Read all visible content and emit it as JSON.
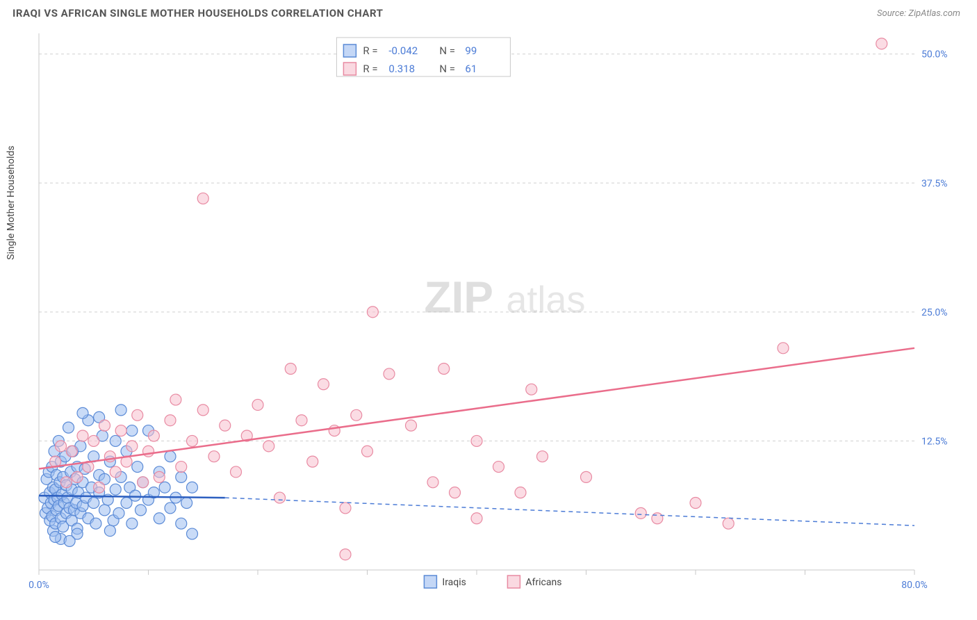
{
  "title": "IRAQI VS AFRICAN SINGLE MOTHER HOUSEHOLDS CORRELATION CHART",
  "source": "Source: ZipAtlas.com",
  "ylabel": "Single Mother Households",
  "watermark_1": "ZIP",
  "watermark_2": "atlas",
  "chart": {
    "type": "scatter",
    "background_color": "#ffffff",
    "grid_color": "#d0d0d0",
    "axis_color": "#c8c8c8",
    "label_color": "#4b7bd6",
    "xlim": [
      0,
      80
    ],
    "ylim": [
      0,
      52
    ],
    "xticks": [
      0,
      10,
      20,
      30,
      40,
      50,
      60,
      70,
      80
    ],
    "xticks_labeled": {
      "0": "0.0%",
      "80": "80.0%"
    },
    "yticks": [
      12.5,
      25.0,
      37.5,
      50.0
    ],
    "ytick_fmt": "%.1f%%",
    "marker_radius": 8,
    "series": [
      {
        "name": "Iraqis",
        "color_fill": "#9dbdf0",
        "color_stroke": "#5a8ad6",
        "R": "-0.042",
        "N": "99",
        "trend": {
          "x1": 0,
          "y1": 7.2,
          "x2": 17,
          "y2": 7.0,
          "dash_to_x": 80,
          "dash_to_y": 4.3
        },
        "points": [
          [
            0.5,
            7.0
          ],
          [
            0.6,
            5.5
          ],
          [
            0.7,
            8.8
          ],
          [
            0.8,
            6.0
          ],
          [
            0.9,
            9.5
          ],
          [
            1.0,
            4.8
          ],
          [
            1.0,
            7.5
          ],
          [
            1.1,
            6.5
          ],
          [
            1.2,
            10.0
          ],
          [
            1.2,
            5.2
          ],
          [
            1.3,
            8.0
          ],
          [
            1.3,
            3.8
          ],
          [
            1.4,
            11.5
          ],
          [
            1.4,
            6.8
          ],
          [
            1.5,
            7.8
          ],
          [
            1.5,
            4.5
          ],
          [
            1.6,
            9.2
          ],
          [
            1.6,
            5.8
          ],
          [
            1.7,
            7.0
          ],
          [
            1.8,
            12.5
          ],
          [
            1.8,
            6.2
          ],
          [
            1.9,
            8.5
          ],
          [
            2.0,
            5.0
          ],
          [
            2.0,
            10.5
          ],
          [
            2.1,
            7.3
          ],
          [
            2.2,
            4.2
          ],
          [
            2.2,
            9.0
          ],
          [
            2.3,
            6.5
          ],
          [
            2.4,
            11.0
          ],
          [
            2.5,
            5.5
          ],
          [
            2.5,
            8.2
          ],
          [
            2.6,
            7.0
          ],
          [
            2.7,
            13.8
          ],
          [
            2.8,
            6.0
          ],
          [
            2.9,
            9.5
          ],
          [
            3.0,
            4.8
          ],
          [
            3.0,
            7.8
          ],
          [
            3.1,
            11.5
          ],
          [
            3.2,
            5.8
          ],
          [
            3.3,
            8.8
          ],
          [
            3.4,
            6.5
          ],
          [
            3.5,
            10.0
          ],
          [
            3.5,
            4.0
          ],
          [
            3.6,
            7.5
          ],
          [
            3.8,
            12.0
          ],
          [
            3.8,
            5.5
          ],
          [
            4.0,
            8.5
          ],
          [
            4.0,
            6.2
          ],
          [
            4.2,
            9.8
          ],
          [
            4.3,
            7.0
          ],
          [
            4.5,
            14.5
          ],
          [
            4.5,
            5.0
          ],
          [
            4.8,
            8.0
          ],
          [
            5.0,
            11.0
          ],
          [
            5.0,
            6.5
          ],
          [
            5.2,
            4.5
          ],
          [
            5.5,
            9.2
          ],
          [
            5.5,
            7.5
          ],
          [
            5.8,
            13.0
          ],
          [
            6.0,
            5.8
          ],
          [
            6.0,
            8.8
          ],
          [
            6.3,
            6.8
          ],
          [
            6.5,
            10.5
          ],
          [
            6.8,
            4.8
          ],
          [
            7.0,
            7.8
          ],
          [
            7.0,
            12.5
          ],
          [
            7.3,
            5.5
          ],
          [
            7.5,
            9.0
          ],
          [
            8.0,
            6.5
          ],
          [
            8.0,
            11.5
          ],
          [
            8.3,
            8.0
          ],
          [
            8.5,
            4.5
          ],
          [
            8.8,
            7.2
          ],
          [
            9.0,
            10.0
          ],
          [
            9.3,
            5.8
          ],
          [
            9.5,
            8.5
          ],
          [
            10.0,
            6.8
          ],
          [
            10.0,
            13.5
          ],
          [
            10.5,
            7.5
          ],
          [
            11.0,
            5.0
          ],
          [
            11.0,
            9.5
          ],
          [
            11.5,
            8.0
          ],
          [
            12.0,
            6.0
          ],
          [
            12.0,
            11.0
          ],
          [
            12.5,
            7.0
          ],
          [
            13.0,
            4.5
          ],
          [
            13.0,
            9.0
          ],
          [
            13.5,
            6.5
          ],
          [
            14.0,
            3.5
          ],
          [
            14.0,
            8.0
          ],
          [
            4.0,
            15.2
          ],
          [
            5.5,
            14.8
          ],
          [
            7.5,
            15.5
          ],
          [
            2.0,
            3.0
          ],
          [
            3.5,
            3.5
          ],
          [
            1.5,
            3.2
          ],
          [
            6.5,
            3.8
          ],
          [
            8.5,
            13.5
          ],
          [
            2.8,
            2.8
          ]
        ]
      },
      {
        "name": "Africans",
        "color_fill": "#f7c0cd",
        "color_stroke": "#e88aa2",
        "R": "0.318",
        "N": "61",
        "trend": {
          "x1": 0,
          "y1": 9.8,
          "x2": 80,
          "y2": 21.5
        },
        "points": [
          [
            1.5,
            10.5
          ],
          [
            2.0,
            12.0
          ],
          [
            2.5,
            8.5
          ],
          [
            3.0,
            11.5
          ],
          [
            3.5,
            9.0
          ],
          [
            4.0,
            13.0
          ],
          [
            4.5,
            10.0
          ],
          [
            5.0,
            12.5
          ],
          [
            5.5,
            8.0
          ],
          [
            6.0,
            14.0
          ],
          [
            6.5,
            11.0
          ],
          [
            7.0,
            9.5
          ],
          [
            7.5,
            13.5
          ],
          [
            8.0,
            10.5
          ],
          [
            8.5,
            12.0
          ],
          [
            9.0,
            15.0
          ],
          [
            9.5,
            8.5
          ],
          [
            10.0,
            11.5
          ],
          [
            10.5,
            13.0
          ],
          [
            11.0,
            9.0
          ],
          [
            12.0,
            14.5
          ],
          [
            12.5,
            16.5
          ],
          [
            13.0,
            10.0
          ],
          [
            14.0,
            12.5
          ],
          [
            15.0,
            15.5
          ],
          [
            15.0,
            36.0
          ],
          [
            16.0,
            11.0
          ],
          [
            17.0,
            14.0
          ],
          [
            18.0,
            9.5
          ],
          [
            19.0,
            13.0
          ],
          [
            20.0,
            16.0
          ],
          [
            21.0,
            12.0
          ],
          [
            22.0,
            7.0
          ],
          [
            23.0,
            19.5
          ],
          [
            24.0,
            14.5
          ],
          [
            25.0,
            10.5
          ],
          [
            26.0,
            18.0
          ],
          [
            27.0,
            13.5
          ],
          [
            28.0,
            6.0
          ],
          [
            29.0,
            15.0
          ],
          [
            30.0,
            11.5
          ],
          [
            32.0,
            19.0
          ],
          [
            30.5,
            25.0
          ],
          [
            34.0,
            14.0
          ],
          [
            36.0,
            8.5
          ],
          [
            37.0,
            19.5
          ],
          [
            38.0,
            7.5
          ],
          [
            40.0,
            12.5
          ],
          [
            42.0,
            10.0
          ],
          [
            44.0,
            7.5
          ],
          [
            40.0,
            5.0
          ],
          [
            46.0,
            11.0
          ],
          [
            28.0,
            1.5
          ],
          [
            55.0,
            5.5
          ],
          [
            56.5,
            5.0
          ],
          [
            60.0,
            6.5
          ],
          [
            63.0,
            4.5
          ],
          [
            68.0,
            21.5
          ],
          [
            77.0,
            51.0
          ],
          [
            45.0,
            17.5
          ],
          [
            50.0,
            9.0
          ]
        ]
      }
    ],
    "corr_legend": {
      "rows": [
        0,
        1
      ]
    },
    "bottom_legend": [
      "Iraqis",
      "Africans"
    ]
  }
}
